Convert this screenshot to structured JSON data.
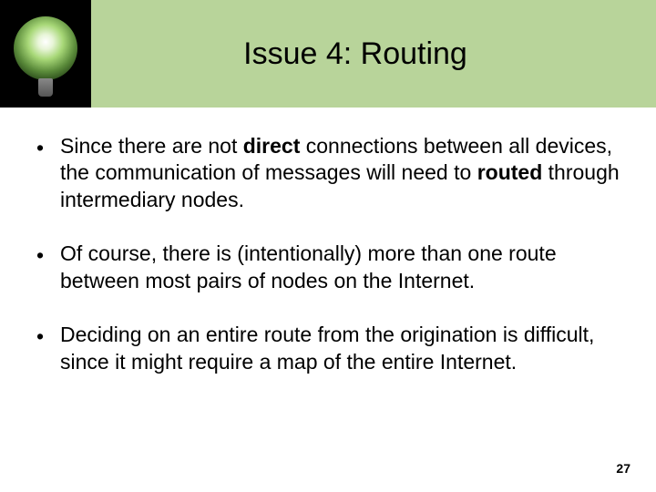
{
  "header": {
    "title": "Issue 4: Routing",
    "background_color": "#b8d49a",
    "title_fontsize": 34,
    "title_color": "#000000",
    "bulb_box_bg": "#000000"
  },
  "bullets": [
    {
      "pre1": "Since there are not ",
      "bold1": "direct",
      "mid1": " connections between all devices, the communication of messages will need to ",
      "bold2": "routed",
      "post1": " through intermediary nodes."
    },
    {
      "pre1": "Of course, there is (intentionally) more than one route between most pairs of nodes on the Internet.",
      "bold1": "",
      "mid1": "",
      "bold2": "",
      "post1": ""
    },
    {
      "pre1": "Deciding on an entire route from the origination is difficult, since it might require a map of the entire Internet.",
      "bold1": "",
      "mid1": "",
      "bold2": "",
      "post1": ""
    }
  ],
  "bullet_fontsize": 23,
  "bullet_color": "#000000",
  "page_number": "27",
  "page_bg": "#ffffff"
}
